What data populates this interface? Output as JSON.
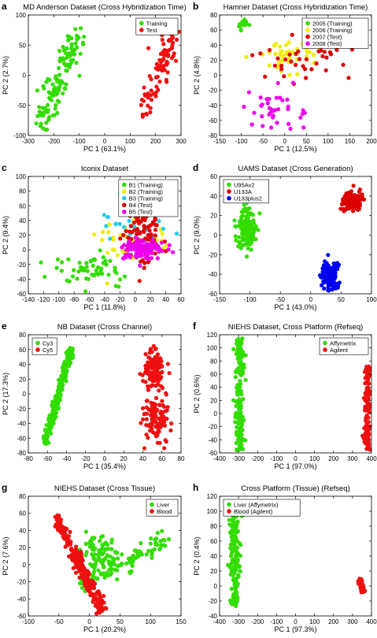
{
  "figure": {
    "panels": [
      {
        "letter": "a",
        "title": "MD Anderson Dataset (Cross Hybridization Time)",
        "legend": {
          "placement": "top-right",
          "items": [
            {
              "label": "Training",
              "color": "#33dd00"
            },
            {
              "label": "Test",
              "color": "#ee1111"
            }
          ]
        }
      },
      {
        "letter": "b",
        "title": "Hamner Dataset (Cross Hybridization Time)",
        "legend": {
          "placement": "top-right",
          "items": [
            {
              "label": "2005 (Training)",
              "color": "#33dd00"
            },
            {
              "label": "2006 (Training)",
              "color": "#eeee00"
            },
            {
              "label": "2007 (Test)",
              "color": "#dd0000"
            },
            {
              "label": "2008 (Test)",
              "color": "#ee00ee"
            }
          ]
        }
      },
      {
        "letter": "c",
        "title": "Iconix Dataset",
        "legend": {
          "placement": "top-right",
          "items": [
            {
              "label": "B1 (Training)",
              "color": "#33dd00"
            },
            {
              "label": "B2 (Training)",
              "color": "#eeee00"
            },
            {
              "label": "B3 (Training)",
              "color": "#22ccee"
            },
            {
              "label": "B4 (Test)",
              "color": "#dd0000"
            },
            {
              "label": "B5 (Test)",
              "color": "#ee00ee"
            }
          ]
        }
      },
      {
        "letter": "d",
        "title": "UAMS Dataset (Cross Generation)",
        "legend": {
          "placement": "top-left",
          "items": [
            {
              "label": "U95Av2",
              "color": "#33dd00"
            },
            {
              "label": "U133A",
              "color": "#dd0000"
            },
            {
              "label": "U133plus2",
              "color": "#0000ee"
            }
          ]
        }
      },
      {
        "letter": "e",
        "title": "NB Dataset (Cross Channel)",
        "legend": {
          "placement": "top-left",
          "items": [
            {
              "label": "Cy3",
              "color": "#33dd00"
            },
            {
              "label": "Cy5",
              "color": "#ee1111"
            }
          ]
        }
      },
      {
        "letter": "f",
        "title": "NIEHS Dataset, Cross Platform (Refseq)",
        "legend": {
          "placement": "top-right",
          "items": [
            {
              "label": "Affymetrix",
              "color": "#33dd00"
            },
            {
              "label": "Agilent",
              "color": "#ee1111"
            }
          ]
        }
      },
      {
        "letter": "g",
        "title": "NIEHS Dataset (Cross Tissue)",
        "legend": {
          "placement": "top-right",
          "items": [
            {
              "label": "Liver",
              "color": "#33dd00"
            },
            {
              "label": "Blood",
              "color": "#ee1111"
            }
          ]
        }
      },
      {
        "letter": "h",
        "title": "Cross Platform (Tissue) (Refseq)",
        "legend": {
          "placement": "top-left",
          "items": [
            {
              "label": "Liver (Affymetrix)",
              "color": "#33dd00"
            },
            {
              "label": "Blood (Agilent)",
              "color": "#ee1111"
            }
          ]
        }
      }
    ]
  },
  "chart_data": [
    {
      "type": "scatter",
      "title": "MD Anderson Dataset (Cross Hybridization Time)",
      "xlabel": "PC 1 (63.1%)",
      "ylabel": "PC 2 (2.7%)",
      "xlim": [
        -300,
        300
      ],
      "ylim": [
        -100,
        100
      ],
      "xticks": [
        -300,
        -200,
        -100,
        0,
        100,
        200,
        300
      ],
      "yticks": [
        -100,
        -50,
        0,
        50,
        100
      ],
      "legend": "top-right",
      "grid": false,
      "series": [
        {
          "name": "Training",
          "color": "#33dd00",
          "count": 120,
          "clusters": [
            {
              "line": [
                [
                  -250,
                  -88
                ],
                [
                  -95,
                  80
                ]
              ],
              "spread": 13
            }
          ]
        },
        {
          "name": "Test",
          "color": "#ee1111",
          "count": 95,
          "clusters": [
            {
              "line": [
                [
                  150,
                  -72
                ],
                [
                  280,
                  76
                ]
              ],
              "spread": 11
            }
          ]
        }
      ]
    },
    {
      "type": "scatter",
      "title": "Hamner Dataset (Cross Hybridization Time)",
      "xlabel": "PC 1 (12.5%)",
      "ylabel": "PC 2 (4.8%)",
      "xlim": [
        -150,
        200
      ],
      "ylim": [
        -80,
        80
      ],
      "xticks": [
        -150,
        -100,
        -50,
        0,
        50,
        100,
        150,
        200
      ],
      "yticks": [
        -80,
        -60,
        -40,
        -20,
        0,
        20,
        40,
        60,
        80
      ],
      "legend": "top-right",
      "grid": false,
      "series": [
        {
          "name": "2005 (Training)",
          "color": "#33dd00",
          "count": 14,
          "clusters": [
            {
              "center": [
                -95,
                68
              ],
              "sd": [
                8,
                4
              ]
            }
          ]
        },
        {
          "name": "2006 (Training)",
          "color": "#eeee00",
          "count": 48,
          "clusters": [
            {
              "center": [
                15,
                30
              ],
              "sd": [
                40,
                12
              ]
            }
          ]
        },
        {
          "name": "2007 (Test)",
          "color": "#dd0000",
          "count": 42,
          "clusters": [
            {
              "center": [
                60,
                25
              ],
              "sd": [
                50,
                13
              ]
            }
          ]
        },
        {
          "name": "2008 (Test)",
          "color": "#ee00ee",
          "count": 38,
          "clusters": [
            {
              "center": [
                -25,
                -47
              ],
              "sd": [
                28,
                14
              ]
            }
          ]
        }
      ]
    },
    {
      "type": "scatter",
      "title": "Iconix Dataset",
      "xlabel": "PC 1 (11.8%)",
      "ylabel": "PC 2 (9.4%)",
      "xlim": [
        -140,
        60
      ],
      "ylim": [
        -60,
        100
      ],
      "xticks": [
        -140,
        -120,
        -100,
        -80,
        -60,
        -40,
        -20,
        0,
        20,
        40,
        60
      ],
      "yticks": [
        -60,
        -40,
        -20,
        0,
        20,
        40,
        60,
        80,
        100
      ],
      "legend": "top-right",
      "grid": false,
      "series": [
        {
          "name": "B1 (Training)",
          "color": "#33dd00",
          "count": 55,
          "clusters": [
            {
              "center": [
                -55,
                -28
              ],
              "sd": [
                22,
                13
              ]
            }
          ]
        },
        {
          "name": "B2 (Training)",
          "color": "#eeee00",
          "count": 40,
          "clusters": [
            {
              "center": [
                5,
                12
              ],
              "sd": [
                30,
                16
              ]
            }
          ]
        },
        {
          "name": "B3 (Training)",
          "color": "#22ccee",
          "count": 25,
          "clusters": [
            {
              "center": [
                -5,
                35
              ],
              "sd": [
                22,
                15
              ]
            }
          ]
        },
        {
          "name": "B4 (Test)",
          "color": "#dd0000",
          "count": 95,
          "clusters": [
            {
              "center": [
                10,
                20
              ],
              "sd": [
                14,
                22
              ]
            }
          ]
        },
        {
          "name": "B5 (Test)",
          "color": "#ee00ee",
          "count": 110,
          "clusters": [
            {
              "center": [
                8,
                0
              ],
              "sd": [
                13,
                9
              ]
            }
          ]
        }
      ]
    },
    {
      "type": "scatter",
      "title": "UAMS Dataset (Cross Generation)",
      "xlabel": "PC 1 (43.0%)",
      "ylabel": "PC 2 (9.0%)",
      "xlim": [
        -150,
        100
      ],
      "ylim": [
        -60,
        60
      ],
      "xticks": [
        -150,
        -100,
        -50,
        0,
        50,
        100
      ],
      "yticks": [
        -60,
        -40,
        -20,
        0,
        20,
        40,
        60
      ],
      "legend": "top-left",
      "grid": false,
      "series": [
        {
          "name": "U95Av2",
          "color": "#33dd00",
          "count": 150,
          "clusters": [
            {
              "center": [
                -105,
                5
              ],
              "sd": [
                7,
                9
              ]
            }
          ]
        },
        {
          "name": "U133A",
          "color": "#dd0000",
          "count": 150,
          "clusters": [
            {
              "center": [
                68,
                35
              ],
              "sd": [
                8,
                5
              ]
            }
          ]
        },
        {
          "name": "U133plus2",
          "color": "#0000ee",
          "count": 150,
          "clusters": [
            {
              "center": [
                33,
                -42
              ],
              "sd": [
                7,
                7
              ]
            }
          ]
        }
      ]
    },
    {
      "type": "scatter",
      "title": "NB Dataset (Cross Channel)",
      "xlabel": "PC 1 (35.4%)",
      "ylabel": "PC 2 (17.3%)",
      "xlim": [
        -80,
        80
      ],
      "ylim": [
        -80,
        80
      ],
      "xticks": [
        -80,
        -60,
        -40,
        -20,
        0,
        20,
        40,
        60,
        80
      ],
      "yticks": [
        -80,
        -60,
        -40,
        -20,
        0,
        20,
        40,
        60,
        80
      ],
      "legend": "top-left",
      "grid": false,
      "series": [
        {
          "name": "Cy3",
          "color": "#33dd00",
          "count": 230,
          "clusters": [
            {
              "line": [
                [
                  -63,
                  -70
                ],
                [
                  -35,
                  62
                ]
              ],
              "spread": 4
            }
          ]
        },
        {
          "name": "Cy5",
          "color": "#ee1111",
          "count": 230,
          "clusters": [
            {
              "center": [
                52,
                30
              ],
              "sd": [
                6,
                13
              ]
            },
            {
              "center": [
                54,
                -35
              ],
              "sd": [
                6,
                15
              ]
            }
          ]
        }
      ]
    },
    {
      "type": "scatter",
      "title": "NIEHS Dataset, Cross Platform (Refseq)",
      "xlabel": "PC 1 (97.0%)",
      "ylabel": "PC 2 (0.6%)",
      "xlim": [
        -400,
        400
      ],
      "ylim": [
        -60,
        120
      ],
      "xticks": [
        -400,
        -300,
        -200,
        -100,
        0,
        100,
        200,
        300,
        400
      ],
      "yticks": [
        -60,
        -40,
        -20,
        0,
        20,
        40,
        60,
        80,
        100,
        120
      ],
      "legend": "top-right",
      "grid": false,
      "series": [
        {
          "name": "Affymetrix",
          "color": "#33dd00",
          "count": 170,
          "clusters": [
            {
              "line": [
                [
                  -293,
                  -58
                ],
                [
                  -293,
                  115
                ]
              ],
              "spread": 5
            }
          ]
        },
        {
          "name": "Agilent",
          "color": "#ee1111",
          "count": 140,
          "clusters": [
            {
              "line": [
                [
                  380,
                  -55
                ],
                [
                  382,
                  72
                ]
              ],
              "spread": 4
            }
          ]
        }
      ]
    },
    {
      "type": "scatter",
      "title": "NIEHS Dataset (Cross Tissue)",
      "xlabel": "PC 1 (20.2%)",
      "ylabel": "PC 2 (7.6%)",
      "xlim": [
        -100,
        150
      ],
      "ylim": [
        -60,
        80
      ],
      "xticks": [
        -100,
        -50,
        0,
        50,
        100,
        150
      ],
      "yticks": [
        -60,
        -40,
        -20,
        0,
        20,
        40,
        60,
        80
      ],
      "legend": "top-right",
      "grid": false,
      "series": [
        {
          "name": "Liver",
          "color": "#33dd00",
          "count": 190,
          "clusters": [
            {
              "line": [
                [
                  -15,
                  -25
                ],
                [
                  130,
                  30
                ]
              ],
              "spread": 10
            },
            {
              "center": [
                15,
                12
              ],
              "sd": [
                18,
                12
              ]
            }
          ]
        },
        {
          "name": "Blood",
          "color": "#ee1111",
          "count": 260,
          "clusters": [
            {
              "line": [
                [
                  -55,
                  58
                ],
                [
                  22,
                  -55
                ]
              ],
              "spread": 6
            }
          ]
        }
      ]
    },
    {
      "type": "scatter",
      "title": "Cross Platform (Tissue) (Refseq)",
      "xlabel": "PC 1 (97.3%)",
      "ylabel": "PC 2 (0.4%)",
      "xlim": [
        -400,
        400
      ],
      "ylim": [
        -40,
        120
      ],
      "xticks": [
        -400,
        -300,
        -200,
        -100,
        0,
        100,
        200,
        300,
        400
      ],
      "yticks": [
        -40,
        -20,
        0,
        20,
        40,
        60,
        80,
        100,
        120
      ],
      "legend": "top-left",
      "grid": false,
      "series": [
        {
          "name": "Liver (Affymetrix)",
          "color": "#33dd00",
          "count": 150,
          "clusters": [
            {
              "line": [
                [
                  -320,
                  -28
                ],
                [
                  -320,
                  96
                ]
              ],
              "spread": 6
            }
          ]
        },
        {
          "name": "Blood (Agilent)",
          "color": "#ee1111",
          "count": 55,
          "clusters": [
            {
              "line": [
                [
                  335,
                  10
                ],
                [
                  355,
                  -8
                ]
              ],
              "spread": 3
            }
          ]
        }
      ]
    }
  ]
}
